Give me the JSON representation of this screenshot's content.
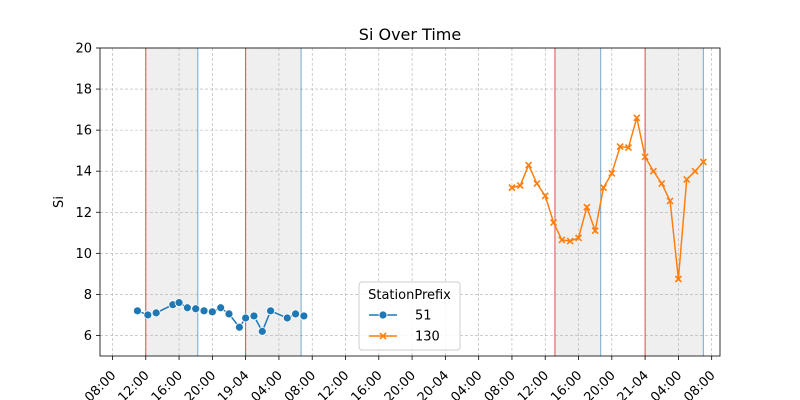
{
  "chart_data": {
    "type": "line",
    "title": "Si  Over Time",
    "xlabel": "",
    "ylabel": "Si",
    "ylim": [
      5,
      20
    ],
    "yticks": [
      6,
      8,
      10,
      12,
      14,
      16,
      18,
      20
    ],
    "xlim": [
      "2023-04-18 06:30",
      "2023-04-21 09:00"
    ],
    "xticks": [
      {
        "t": "2023-04-18 08:00",
        "label": "08:00"
      },
      {
        "t": "2023-04-18 12:00",
        "label": "12:00"
      },
      {
        "t": "2023-04-18 16:00",
        "label": "16:00"
      },
      {
        "t": "2023-04-18 20:00",
        "label": "20:00"
      },
      {
        "t": "2023-04-19 00:00",
        "label": "19-04"
      },
      {
        "t": "2023-04-19 04:00",
        "label": "04:00"
      },
      {
        "t": "2023-04-19 08:00",
        "label": "08:00"
      },
      {
        "t": "2023-04-19 12:00",
        "label": "12:00"
      },
      {
        "t": "2023-04-19 16:00",
        "label": "16:00"
      },
      {
        "t": "2023-04-19 20:00",
        "label": "20:00"
      },
      {
        "t": "2023-04-20 00:00",
        "label": "20-04"
      },
      {
        "t": "2023-04-20 04:00",
        "label": "04:00"
      },
      {
        "t": "2023-04-20 08:00",
        "label": "08:00"
      },
      {
        "t": "2023-04-20 12:00",
        "label": "12:00"
      },
      {
        "t": "2023-04-20 16:00",
        "label": "16:00"
      },
      {
        "t": "2023-04-20 20:00",
        "label": "20:00"
      },
      {
        "t": "2023-04-21 00:00",
        "label": "21-04"
      },
      {
        "t": "2023-04-21 04:00",
        "label": "04:00"
      },
      {
        "t": "2023-04-21 08:00",
        "label": "08:00"
      }
    ],
    "grid": true,
    "shaded_periods": [
      {
        "start": "2023-04-18 12:00",
        "end": "2023-04-18 18:15"
      },
      {
        "start": "2023-04-19 00:00",
        "end": "2023-04-19 06:40"
      },
      {
        "start": "2023-04-20 13:10",
        "end": "2023-04-20 18:40"
      },
      {
        "start": "2023-04-21 00:00",
        "end": "2023-04-21 07:00"
      }
    ],
    "legend": {
      "title": "StationPrefix",
      "position": "lower center"
    },
    "series": [
      {
        "name": "51",
        "color": "#1f77b4",
        "marker": "circle",
        "points": [
          {
            "t": "2023-04-18 11:00",
            "y": 7.2
          },
          {
            "t": "2023-04-18 12:15",
            "y": 7.0
          },
          {
            "t": "2023-04-18 13:15",
            "y": 7.1
          },
          {
            "t": "2023-04-18 15:15",
            "y": 7.5
          },
          {
            "t": "2023-04-18 16:00",
            "y": 7.6
          },
          {
            "t": "2023-04-18 17:00",
            "y": 7.35
          },
          {
            "t": "2023-04-18 18:00",
            "y": 7.3
          },
          {
            "t": "2023-04-18 19:00",
            "y": 7.2
          },
          {
            "t": "2023-04-18 20:00",
            "y": 7.15
          },
          {
            "t": "2023-04-18 21:00",
            "y": 7.35
          },
          {
            "t": "2023-04-18 22:00",
            "y": 7.05
          },
          {
            "t": "2023-04-18 23:15",
            "y": 6.4
          },
          {
            "t": "2023-04-19 00:00",
            "y": 6.85
          },
          {
            "t": "2023-04-19 01:00",
            "y": 6.95
          },
          {
            "t": "2023-04-19 02:00",
            "y": 6.2
          },
          {
            "t": "2023-04-19 03:00",
            "y": 7.2
          },
          {
            "t": "2023-04-19 05:00",
            "y": 6.85
          },
          {
            "t": "2023-04-19 06:00",
            "y": 7.05
          },
          {
            "t": "2023-04-19 07:00",
            "y": 6.95
          }
        ]
      },
      {
        "name": "130",
        "color": "#ff7f0e",
        "marker": "x",
        "points": [
          {
            "t": "2023-04-20 08:00",
            "y": 13.2
          },
          {
            "t": "2023-04-20 09:00",
            "y": 13.3
          },
          {
            "t": "2023-04-20 10:00",
            "y": 14.3
          },
          {
            "t": "2023-04-20 11:00",
            "y": 13.4
          },
          {
            "t": "2023-04-20 12:00",
            "y": 12.8
          },
          {
            "t": "2023-04-20 13:00",
            "y": 11.5
          },
          {
            "t": "2023-04-20 14:00",
            "y": 10.65
          },
          {
            "t": "2023-04-20 15:00",
            "y": 10.6
          },
          {
            "t": "2023-04-20 16:00",
            "y": 10.75
          },
          {
            "t": "2023-04-20 17:00",
            "y": 12.25
          },
          {
            "t": "2023-04-20 18:00",
            "y": 11.1
          },
          {
            "t": "2023-04-20 19:00",
            "y": 13.2
          },
          {
            "t": "2023-04-20 20:00",
            "y": 13.9
          },
          {
            "t": "2023-04-20 21:00",
            "y": 15.2
          },
          {
            "t": "2023-04-20 22:00",
            "y": 15.15
          },
          {
            "t": "2023-04-20 23:00",
            "y": 16.6
          },
          {
            "t": "2023-04-21 00:00",
            "y": 14.7
          },
          {
            "t": "2023-04-21 01:00",
            "y": 14.0
          },
          {
            "t": "2023-04-21 02:00",
            "y": 13.4
          },
          {
            "t": "2023-04-21 03:00",
            "y": 12.55
          },
          {
            "t": "2023-04-21 04:00",
            "y": 8.75
          },
          {
            "t": "2023-04-21 05:00",
            "y": 13.6
          },
          {
            "t": "2023-04-21 06:00",
            "y": 14.0
          },
          {
            "t": "2023-04-21 07:00",
            "y": 14.45
          }
        ]
      }
    ],
    "colors": {
      "period_start_line": "#d62728",
      "period_end_line": "#1f77b4",
      "shade": "#e8e8e8",
      "grid": "#b0b0b0"
    }
  }
}
